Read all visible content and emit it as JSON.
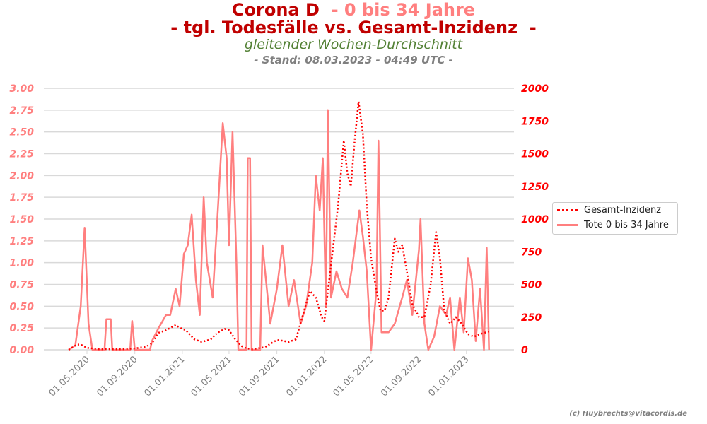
{
  "title": {
    "line1_main": "Corona D ",
    "line1_sub": " - 0 bis 34 Jahre",
    "line2": "- tgl. Todesfälle vs. Gesamt-Inzidenz  -",
    "subtitle": "gleitender Wochen-Durchschnitt",
    "stand": "- Stand: 08.03.2023 - 04:49 UTC -"
  },
  "copyright": "(c) Huybrechts@vitacordis.de",
  "chart_data": {
    "type": "line",
    "grid": true,
    "legend_placement": "right",
    "x_ticks": [
      "01.05.2020",
      "01.09.2020",
      "01.01.2021",
      "01.05.2021",
      "01.09.2021",
      "01.01.2022",
      "01.05.2022",
      "01.09.2022",
      "01.01.2023"
    ],
    "x_tick_dates": [
      "2020-05-01",
      "2020-09-01",
      "2021-01-01",
      "2021-05-01",
      "2021-09-01",
      "2022-01-01",
      "2022-05-01",
      "2022-09-01",
      "2023-01-01"
    ],
    "y_left": {
      "range": [
        0,
        3
      ],
      "ticks": [
        "0.00",
        "0.25",
        "0.50",
        "0.75",
        "1.00",
        "1.25",
        "1.50",
        "1.75",
        "2.00",
        "2.25",
        "2.50",
        "2.75",
        "3.00"
      ],
      "color": "#ff7f7f"
    },
    "y_right": {
      "range": [
        0,
        2000
      ],
      "ticks": [
        "0",
        "250",
        "500",
        "750",
        "1000",
        "1250",
        "1500",
        "1750",
        "2000"
      ],
      "color": "#ff0000"
    },
    "series": [
      {
        "name": "Gesamt-Inzidenz",
        "axis": "right",
        "style": "dotted",
        "color": "#ff0000",
        "points": [
          [
            "2020-03-15",
            0
          ],
          [
            "2020-04-05",
            40
          ],
          [
            "2020-04-15",
            40
          ],
          [
            "2020-05-01",
            15
          ],
          [
            "2020-06-01",
            5
          ],
          [
            "2020-08-01",
            5
          ],
          [
            "2020-09-01",
            10
          ],
          [
            "2020-10-01",
            25
          ],
          [
            "2020-10-15",
            50
          ],
          [
            "2020-11-01",
            130
          ],
          [
            "2020-11-20",
            150
          ],
          [
            "2020-12-15",
            190
          ],
          [
            "2020-12-25",
            170
          ],
          [
            "2021-01-10",
            150
          ],
          [
            "2021-02-01",
            80
          ],
          [
            "2021-02-20",
            60
          ],
          [
            "2021-03-15",
            80
          ],
          [
            "2021-04-01",
            130
          ],
          [
            "2021-04-20",
            160
          ],
          [
            "2021-05-01",
            150
          ],
          [
            "2021-05-15",
            90
          ],
          [
            "2021-06-01",
            30
          ],
          [
            "2021-06-15",
            10
          ],
          [
            "2021-07-01",
            5
          ],
          [
            "2021-08-01",
            20
          ],
          [
            "2021-09-01",
            75
          ],
          [
            "2021-09-15",
            70
          ],
          [
            "2021-10-01",
            60
          ],
          [
            "2021-10-20",
            80
          ],
          [
            "2021-11-10",
            300
          ],
          [
            "2021-11-25",
            450
          ],
          [
            "2021-12-10",
            400
          ],
          [
            "2021-12-25",
            250
          ],
          [
            "2022-01-01",
            220
          ],
          [
            "2022-01-20",
            700
          ],
          [
            "2022-02-05",
            1100
          ],
          [
            "2022-02-20",
            1600
          ],
          [
            "2022-03-01",
            1350
          ],
          [
            "2022-03-10",
            1250
          ],
          [
            "2022-03-20",
            1600
          ],
          [
            "2022-03-30",
            1900
          ],
          [
            "2022-04-10",
            1650
          ],
          [
            "2022-04-20",
            1100
          ],
          [
            "2022-05-01",
            700
          ],
          [
            "2022-05-15",
            450
          ],
          [
            "2022-05-25",
            300
          ],
          [
            "2022-06-05",
            300
          ],
          [
            "2022-06-15",
            400
          ],
          [
            "2022-07-01",
            850
          ],
          [
            "2022-07-10",
            750
          ],
          [
            "2022-07-20",
            800
          ],
          [
            "2022-08-01",
            600
          ],
          [
            "2022-08-15",
            350
          ],
          [
            "2022-09-01",
            250
          ],
          [
            "2022-09-15",
            250
          ],
          [
            "2022-10-01",
            500
          ],
          [
            "2022-10-15",
            900
          ],
          [
            "2022-10-25",
            700
          ],
          [
            "2022-11-05",
            300
          ],
          [
            "2022-11-20",
            200
          ],
          [
            "2022-12-05",
            250
          ],
          [
            "2022-12-20",
            200
          ],
          [
            "2023-01-05",
            120
          ],
          [
            "2023-01-20",
            100
          ],
          [
            "2023-02-05",
            120
          ],
          [
            "2023-02-28",
            140
          ]
        ]
      },
      {
        "name": "Tote 0 bis 34 Jahre",
        "axis": "left",
        "style": "solid",
        "color": "#ff7f7f",
        "points": [
          [
            "2020-03-15",
            0
          ],
          [
            "2020-04-01",
            0.05
          ],
          [
            "2020-04-15",
            0.5
          ],
          [
            "2020-04-25",
            1.4
          ],
          [
            "2020-05-05",
            0.3
          ],
          [
            "2020-05-15",
            0
          ],
          [
            "2020-06-15",
            0
          ],
          [
            "2020-06-20",
            0.35
          ],
          [
            "2020-07-01",
            0.35
          ],
          [
            "2020-07-05",
            0
          ],
          [
            "2020-08-20",
            0
          ],
          [
            "2020-08-25",
            0.33
          ],
          [
            "2020-09-01",
            0
          ],
          [
            "2020-10-10",
            0
          ],
          [
            "2020-10-15",
            0.1
          ],
          [
            "2020-11-01",
            0.25
          ],
          [
            "2020-11-20",
            0.4
          ],
          [
            "2020-12-01",
            0.4
          ],
          [
            "2020-12-15",
            0.7
          ],
          [
            "2020-12-25",
            0.5
          ],
          [
            "2021-01-05",
            1.1
          ],
          [
            "2021-01-15",
            1.2
          ],
          [
            "2021-01-25",
            1.55
          ],
          [
            "2021-02-05",
            0.8
          ],
          [
            "2021-02-15",
            0.4
          ],
          [
            "2021-02-25",
            1.75
          ],
          [
            "2021-03-05",
            1.0
          ],
          [
            "2021-03-20",
            0.6
          ],
          [
            "2021-04-01",
            1.5
          ],
          [
            "2021-04-15",
            2.6
          ],
          [
            "2021-04-25",
            2.2
          ],
          [
            "2021-05-01",
            1.2
          ],
          [
            "2021-05-10",
            2.5
          ],
          [
            "2021-05-20",
            1.0
          ],
          [
            "2021-05-25",
            0
          ],
          [
            "2021-06-15",
            0
          ],
          [
            "2021-06-18",
            2.2
          ],
          [
            "2021-06-24",
            2.2
          ],
          [
            "2021-06-28",
            0
          ],
          [
            "2021-07-20",
            0
          ],
          [
            "2021-07-26",
            1.2
          ],
          [
            "2021-08-15",
            0.3
          ],
          [
            "2021-09-01",
            0.7
          ],
          [
            "2021-09-15",
            1.2
          ],
          [
            "2021-10-01",
            0.5
          ],
          [
            "2021-10-15",
            0.8
          ],
          [
            "2021-11-01",
            0.3
          ],
          [
            "2021-11-15",
            0.5
          ],
          [
            "2021-12-01",
            1.0
          ],
          [
            "2021-12-10",
            2.0
          ],
          [
            "2021-12-20",
            1.6
          ],
          [
            "2021-12-28",
            2.2
          ],
          [
            "2022-01-05",
            0.5
          ],
          [
            "2022-01-10",
            2.75
          ],
          [
            "2022-01-18",
            0.6
          ],
          [
            "2022-02-01",
            0.9
          ],
          [
            "2022-02-15",
            0.7
          ],
          [
            "2022-03-01",
            0.6
          ],
          [
            "2022-03-15",
            1.0
          ],
          [
            "2022-04-01",
            1.6
          ],
          [
            "2022-04-10",
            1.3
          ],
          [
            "2022-04-20",
            0.9
          ],
          [
            "2022-05-01",
            0
          ],
          [
            "2022-05-15",
            0.7
          ],
          [
            "2022-05-20",
            2.4
          ],
          [
            "2022-05-28",
            0.2
          ],
          [
            "2022-06-15",
            0.2
          ],
          [
            "2022-07-01",
            0.3
          ],
          [
            "2022-07-20",
            0.6
          ],
          [
            "2022-08-01",
            0.8
          ],
          [
            "2022-08-15",
            0.4
          ],
          [
            "2022-09-01",
            1.15
          ],
          [
            "2022-09-05",
            1.5
          ],
          [
            "2022-09-15",
            0.3
          ],
          [
            "2022-09-25",
            0
          ],
          [
            "2022-10-10",
            0.15
          ],
          [
            "2022-10-25",
            0.5
          ],
          [
            "2022-11-10",
            0.4
          ],
          [
            "2022-11-20",
            0.6
          ],
          [
            "2022-12-01",
            0
          ],
          [
            "2022-12-15",
            0.6
          ],
          [
            "2022-12-25",
            0.2
          ],
          [
            "2023-01-05",
            1.05
          ],
          [
            "2023-01-15",
            0.8
          ],
          [
            "2023-01-25",
            0.1
          ],
          [
            "2023-02-05",
            0.7
          ],
          [
            "2023-02-15",
            0
          ],
          [
            "2023-02-22",
            1.17
          ],
          [
            "2023-02-28",
            0
          ]
        ]
      }
    ]
  }
}
